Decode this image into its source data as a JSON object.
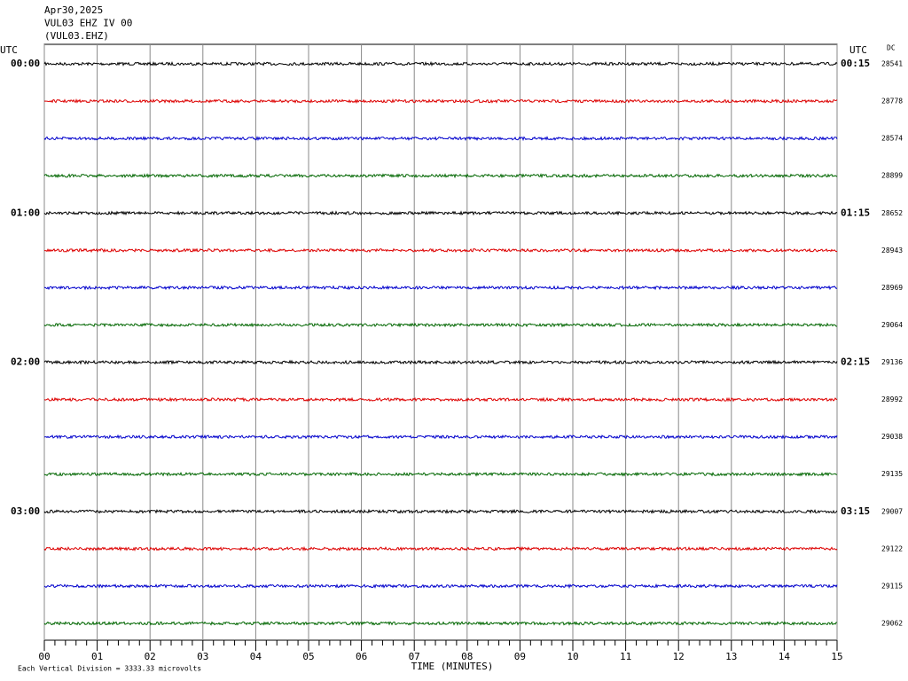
{
  "chart_data": {
    "type": "helicorder",
    "title_lines": [
      "Apr30,2025",
      "VUL03 EHZ IV 00",
      "(VUL03.EHZ)"
    ],
    "left_axis_label": "UTC",
    "right_axis_label": "UTC",
    "dc_label": "DC",
    "xlabel": "TIME (MINUTES)",
    "note": "Each Vertical Division = 3333.33 microvolts",
    "xlim": [
      0,
      15
    ],
    "xticks": [
      {
        "value": 0,
        "label": "00"
      },
      {
        "value": 1,
        "label": "01"
      },
      {
        "value": 2,
        "label": "02"
      },
      {
        "value": 3,
        "label": "03"
      },
      {
        "value": 4,
        "label": "04"
      },
      {
        "value": 5,
        "label": "05"
      },
      {
        "value": 6,
        "label": "06"
      },
      {
        "value": 7,
        "label": "07"
      },
      {
        "value": 8,
        "label": "08"
      },
      {
        "value": 9,
        "label": "09"
      },
      {
        "value": 10,
        "label": "10"
      },
      {
        "value": 11,
        "label": "11"
      },
      {
        "value": 12,
        "label": "12"
      },
      {
        "value": 13,
        "label": "13"
      },
      {
        "value": 14,
        "label": "14"
      },
      {
        "value": 15,
        "label": "15"
      }
    ],
    "grid": true,
    "row_labels": [
      "00:00",
      null,
      null,
      null,
      "01:00",
      null,
      null,
      null,
      "02:00",
      null,
      null,
      null,
      "03:00",
      null,
      null,
      null
    ],
    "right_row_labels": [
      "00:15",
      null,
      null,
      null,
      "01:15",
      null,
      null,
      null,
      "02:15",
      null,
      null,
      null,
      "03:15",
      null,
      null,
      null
    ],
    "dc_values": [
      28541,
      28778,
      28574,
      28899,
      28652,
      28943,
      28969,
      29064,
      29136,
      28992,
      29038,
      29135,
      29007,
      29122,
      29115,
      29062
    ],
    "trace_colors": [
      "#000000",
      "#dd0000",
      "#0000cc",
      "#006600"
    ]
  }
}
